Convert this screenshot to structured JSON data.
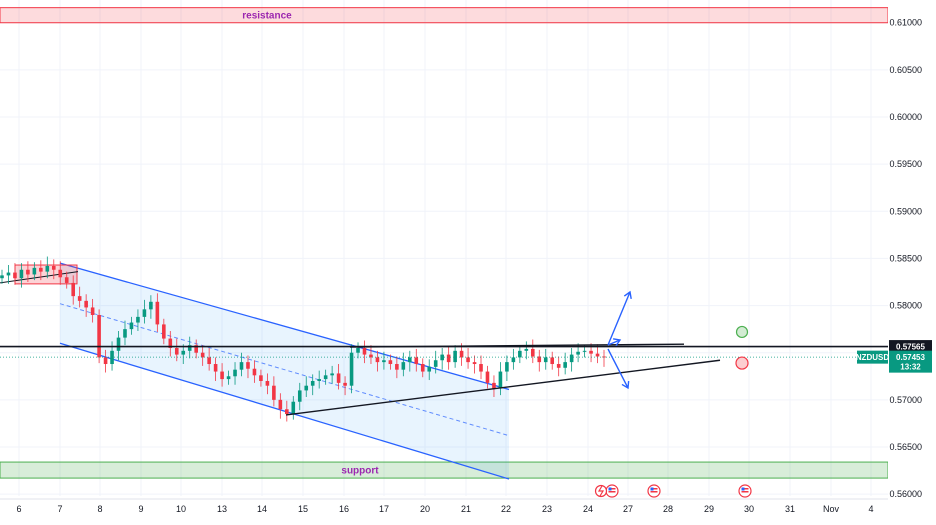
{
  "chart_data": {
    "type": "candlestick",
    "symbol": "NZDUSD",
    "last_price": "0.57453",
    "countdown": "13:32",
    "level_price": "0.57565",
    "y_ticks": [
      "0.61000",
      "0.60500",
      "0.60000",
      "0.59500",
      "0.59000",
      "0.58500",
      "0.58000",
      "0.57500",
      "0.57000",
      "0.56500",
      "0.56000"
    ],
    "x_ticks": [
      "6",
      "7",
      "8",
      "9",
      "10",
      "13",
      "14",
      "15",
      "16",
      "17",
      "20",
      "21",
      "22",
      "23",
      "24",
      "27",
      "28",
      "29",
      "30",
      "31",
      "Nov",
      "4"
    ],
    "zones": [
      {
        "label": "resistance",
        "from": 0.61,
        "to": 0.6116,
        "color": "#f23645"
      },
      {
        "label": "support",
        "from": 0.5617,
        "to": 0.5634,
        "color": "#4caf50"
      }
    ],
    "series": [
      {
        "values": [
          0.5832,
          0.5835,
          0.5829,
          0.5838,
          0.5833,
          0.584,
          0.5836,
          0.5842,
          0.5838,
          0.583,
          0.5824,
          0.581,
          0.5805,
          0.5798,
          0.579,
          0.5745,
          0.5738,
          0.5752,
          0.5766,
          0.5775,
          0.5782,
          0.5788,
          0.5796,
          0.5804,
          0.578,
          0.5765,
          0.5755,
          0.5748,
          0.5752,
          0.5758,
          0.575,
          0.5745,
          0.5738,
          0.573,
          0.5722,
          0.5725,
          0.5732,
          0.574,
          0.5733,
          0.5726,
          0.572,
          0.5715,
          0.57,
          0.569,
          0.5685,
          0.5698,
          0.571,
          0.5715,
          0.572,
          0.5722,
          0.5726,
          0.5728,
          0.5718,
          0.5715,
          0.575,
          0.5755,
          0.5748,
          0.5745,
          0.574,
          0.5742,
          0.5738,
          0.5732,
          0.574,
          0.5745,
          0.5738,
          0.573,
          0.5735,
          0.5742,
          0.5748,
          0.574,
          0.5752,
          0.5745,
          0.574,
          0.5738,
          0.573,
          0.5718,
          0.5712,
          0.573,
          0.574,
          0.5745,
          0.5752,
          0.5754,
          0.5746,
          0.574,
          0.5745,
          0.5738,
          0.5734,
          0.574,
          0.5748,
          0.5751,
          0.5752,
          0.5749,
          0.5746,
          0.5745
        ]
      }
    ],
    "ylim": [
      0.5598,
      0.6122
    ],
    "event_icons": [
      "us-flag-icon",
      "us-flag-icon",
      "us-flag-icon",
      "us-flag-icon"
    ]
  }
}
